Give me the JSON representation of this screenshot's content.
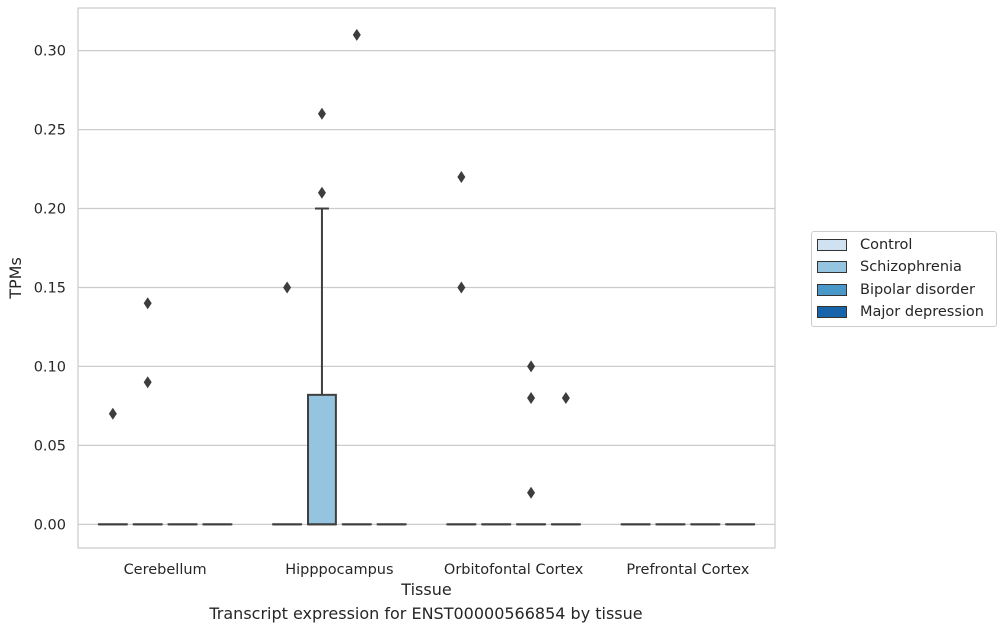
{
  "chart_data": {
    "type": "box",
    "title": "Transcript expression for ENST00000566854 by tissue",
    "xlabel": "Tissue",
    "ylabel": "TPMs",
    "categories": [
      "Cerebellum",
      "Hipppocampus",
      "Orbitofontal Cortex",
      "Prefrontal Cortex"
    ],
    "ylim": [
      -0.015,
      0.327
    ],
    "yticks": [
      0.0,
      0.05,
      0.1,
      0.15,
      0.2,
      0.25,
      0.3
    ],
    "ytick_labels": [
      "0.00",
      "0.05",
      "0.10",
      "0.15",
      "0.20",
      "0.25",
      "0.30"
    ],
    "grid": true,
    "legend_position": "right",
    "series": [
      {
        "name": "Control",
        "color": "#d0e1f2",
        "boxes": [
          {
            "category": "Cerebellum",
            "q1": 0,
            "median": 0,
            "q3": 0,
            "whisker_low": 0,
            "whisker_high": 0,
            "outliers": [
              0.07
            ]
          },
          {
            "category": "Hipppocampus",
            "q1": 0,
            "median": 0,
            "q3": 0,
            "whisker_low": 0,
            "whisker_high": 0,
            "outliers": [
              0.15
            ]
          },
          {
            "category": "Orbitofontal Cortex",
            "q1": 0,
            "median": 0,
            "q3": 0,
            "whisker_low": 0,
            "whisker_high": 0,
            "outliers": [
              0.22,
              0.15
            ]
          },
          {
            "category": "Prefrontal Cortex",
            "q1": 0,
            "median": 0,
            "q3": 0,
            "whisker_low": 0,
            "whisker_high": 0,
            "outliers": []
          }
        ]
      },
      {
        "name": "Schizophrenia",
        "color": "#94c4df",
        "boxes": [
          {
            "category": "Cerebellum",
            "q1": 0,
            "median": 0,
            "q3": 0,
            "whisker_low": 0,
            "whisker_high": 0,
            "outliers": [
              0.14,
              0.09
            ]
          },
          {
            "category": "Hipppocampus",
            "q1": 0,
            "median": 0,
            "q3": 0.082,
            "whisker_low": 0,
            "whisker_high": 0.2,
            "outliers": [
              0.26,
              0.21
            ]
          },
          {
            "category": "Orbitofontal Cortex",
            "q1": 0,
            "median": 0,
            "q3": 0,
            "whisker_low": 0,
            "whisker_high": 0,
            "outliers": []
          },
          {
            "category": "Prefrontal Cortex",
            "q1": 0,
            "median": 0,
            "q3": 0,
            "whisker_low": 0,
            "whisker_high": 0,
            "outliers": []
          }
        ]
      },
      {
        "name": "Bipolar disorder",
        "color": "#4a98c9",
        "boxes": [
          {
            "category": "Cerebellum",
            "q1": 0,
            "median": 0,
            "q3": 0,
            "whisker_low": 0,
            "whisker_high": 0,
            "outliers": []
          },
          {
            "category": "Hipppocampus",
            "q1": 0,
            "median": 0,
            "q3": 0,
            "whisker_low": 0,
            "whisker_high": 0,
            "outliers": [
              0.31
            ]
          },
          {
            "category": "Orbitofontal Cortex",
            "q1": 0,
            "median": 0,
            "q3": 0,
            "whisker_low": 0,
            "whisker_high": 0,
            "outliers": [
              0.1,
              0.08,
              0.02
            ]
          },
          {
            "category": "Prefrontal Cortex",
            "q1": 0,
            "median": 0,
            "q3": 0,
            "whisker_low": 0,
            "whisker_high": 0,
            "outliers": []
          }
        ]
      },
      {
        "name": "Major depression",
        "color": "#1764ab",
        "boxes": [
          {
            "category": "Cerebellum",
            "q1": 0,
            "median": 0,
            "q3": 0,
            "whisker_low": 0,
            "whisker_high": 0,
            "outliers": []
          },
          {
            "category": "Hipppocampus",
            "q1": 0,
            "median": 0,
            "q3": 0,
            "whisker_low": 0,
            "whisker_high": 0,
            "outliers": []
          },
          {
            "category": "Orbitofontal Cortex",
            "q1": 0,
            "median": 0,
            "q3": 0,
            "whisker_low": 0,
            "whisker_high": 0,
            "outliers": [
              0.08
            ]
          },
          {
            "category": "Prefrontal Cortex",
            "q1": 0,
            "median": 0,
            "q3": 0,
            "whisker_low": 0,
            "whisker_high": 0,
            "outliers": []
          }
        ]
      }
    ]
  }
}
